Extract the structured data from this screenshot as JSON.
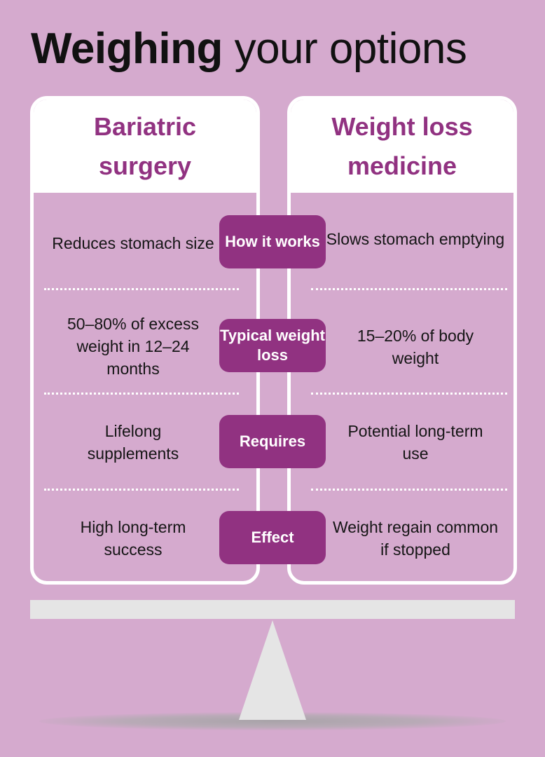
{
  "title": {
    "bold": "Weighing",
    "rest": "your options"
  },
  "columns": {
    "left": {
      "heading": "Bariatric surgery"
    },
    "right": {
      "heading": "Weight loss medicine"
    }
  },
  "rows": [
    {
      "label": "How it works",
      "left": "Reduces stomach size",
      "right": "Slows stomach emptying"
    },
    {
      "label": "Typical weight loss",
      "left": "50–80% of excess weight in 12–24 months",
      "right": "15–20% of body weight"
    },
    {
      "label": "Requires",
      "left": "Lifelong supplements",
      "right": "Potential long-term use"
    },
    {
      "label": "Effect",
      "left": "High long-term success",
      "right": "Weight regain common if stopped"
    }
  ],
  "colors": {
    "background": "#d5aace",
    "accent": "#913281",
    "card": "#ffffff",
    "scale": "#e5e5e5"
  },
  "icons": {
    "scale": "balance-scale-icon"
  }
}
